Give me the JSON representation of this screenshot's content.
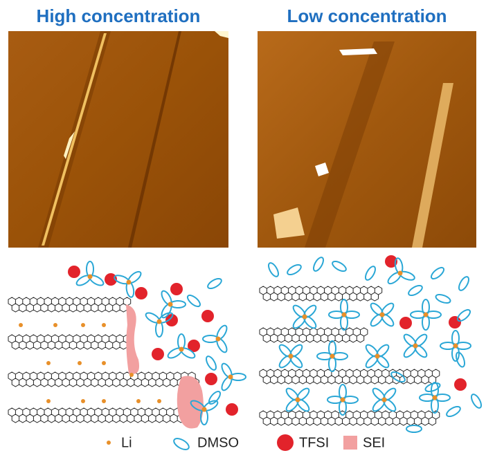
{
  "panels": [
    {
      "title": "High concentration"
    },
    {
      "title": "Low concentration"
    }
  ],
  "legend": [
    {
      "label": "Li"
    },
    {
      "label": "DMSO"
    },
    {
      "label": "TFSI"
    },
    {
      "label": "SEI"
    }
  ]
}
